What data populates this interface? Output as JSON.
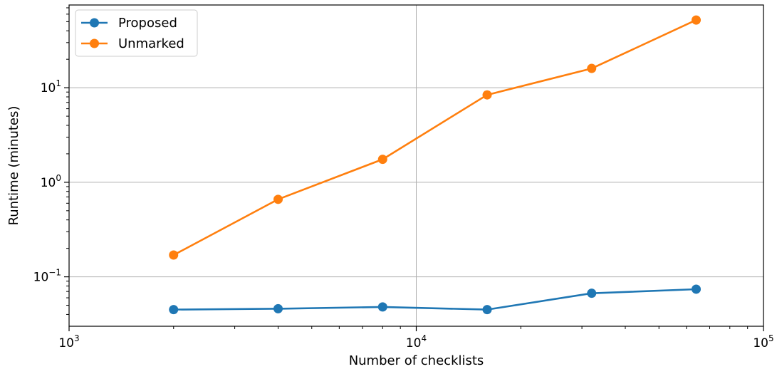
{
  "chart_data": {
    "type": "line",
    "xlabel": "Number of checklists",
    "ylabel": "Runtime (minutes)",
    "x_scale": "log",
    "y_scale": "log",
    "xlim": [
      1000,
      100000
    ],
    "ylim": [
      0.03,
      75
    ],
    "x_ticks": [
      {
        "base": "10",
        "exp": "3",
        "value": 1000
      },
      {
        "base": "10",
        "exp": "4",
        "value": 10000
      },
      {
        "base": "10",
        "exp": "5",
        "value": 100000
      }
    ],
    "y_ticks": [
      {
        "base": "10",
        "exp": "−1",
        "value": 0.1
      },
      {
        "base": "10",
        "exp": "0",
        "value": 1
      },
      {
        "base": "10",
        "exp": "1",
        "value": 10
      }
    ],
    "grid": true,
    "legend_position": "top-left",
    "x": [
      2000,
      4000,
      8000,
      16000,
      32000,
      64000
    ],
    "series": [
      {
        "name": "Proposed",
        "color": "#1f77b4",
        "values": [
          0.045,
          0.046,
          0.048,
          0.045,
          0.067,
          0.074
        ]
      },
      {
        "name": "Unmarked",
        "color": "#ff7f0e",
        "values": [
          0.17,
          0.66,
          1.75,
          8.4,
          16.0,
          52.0
        ]
      }
    ]
  }
}
